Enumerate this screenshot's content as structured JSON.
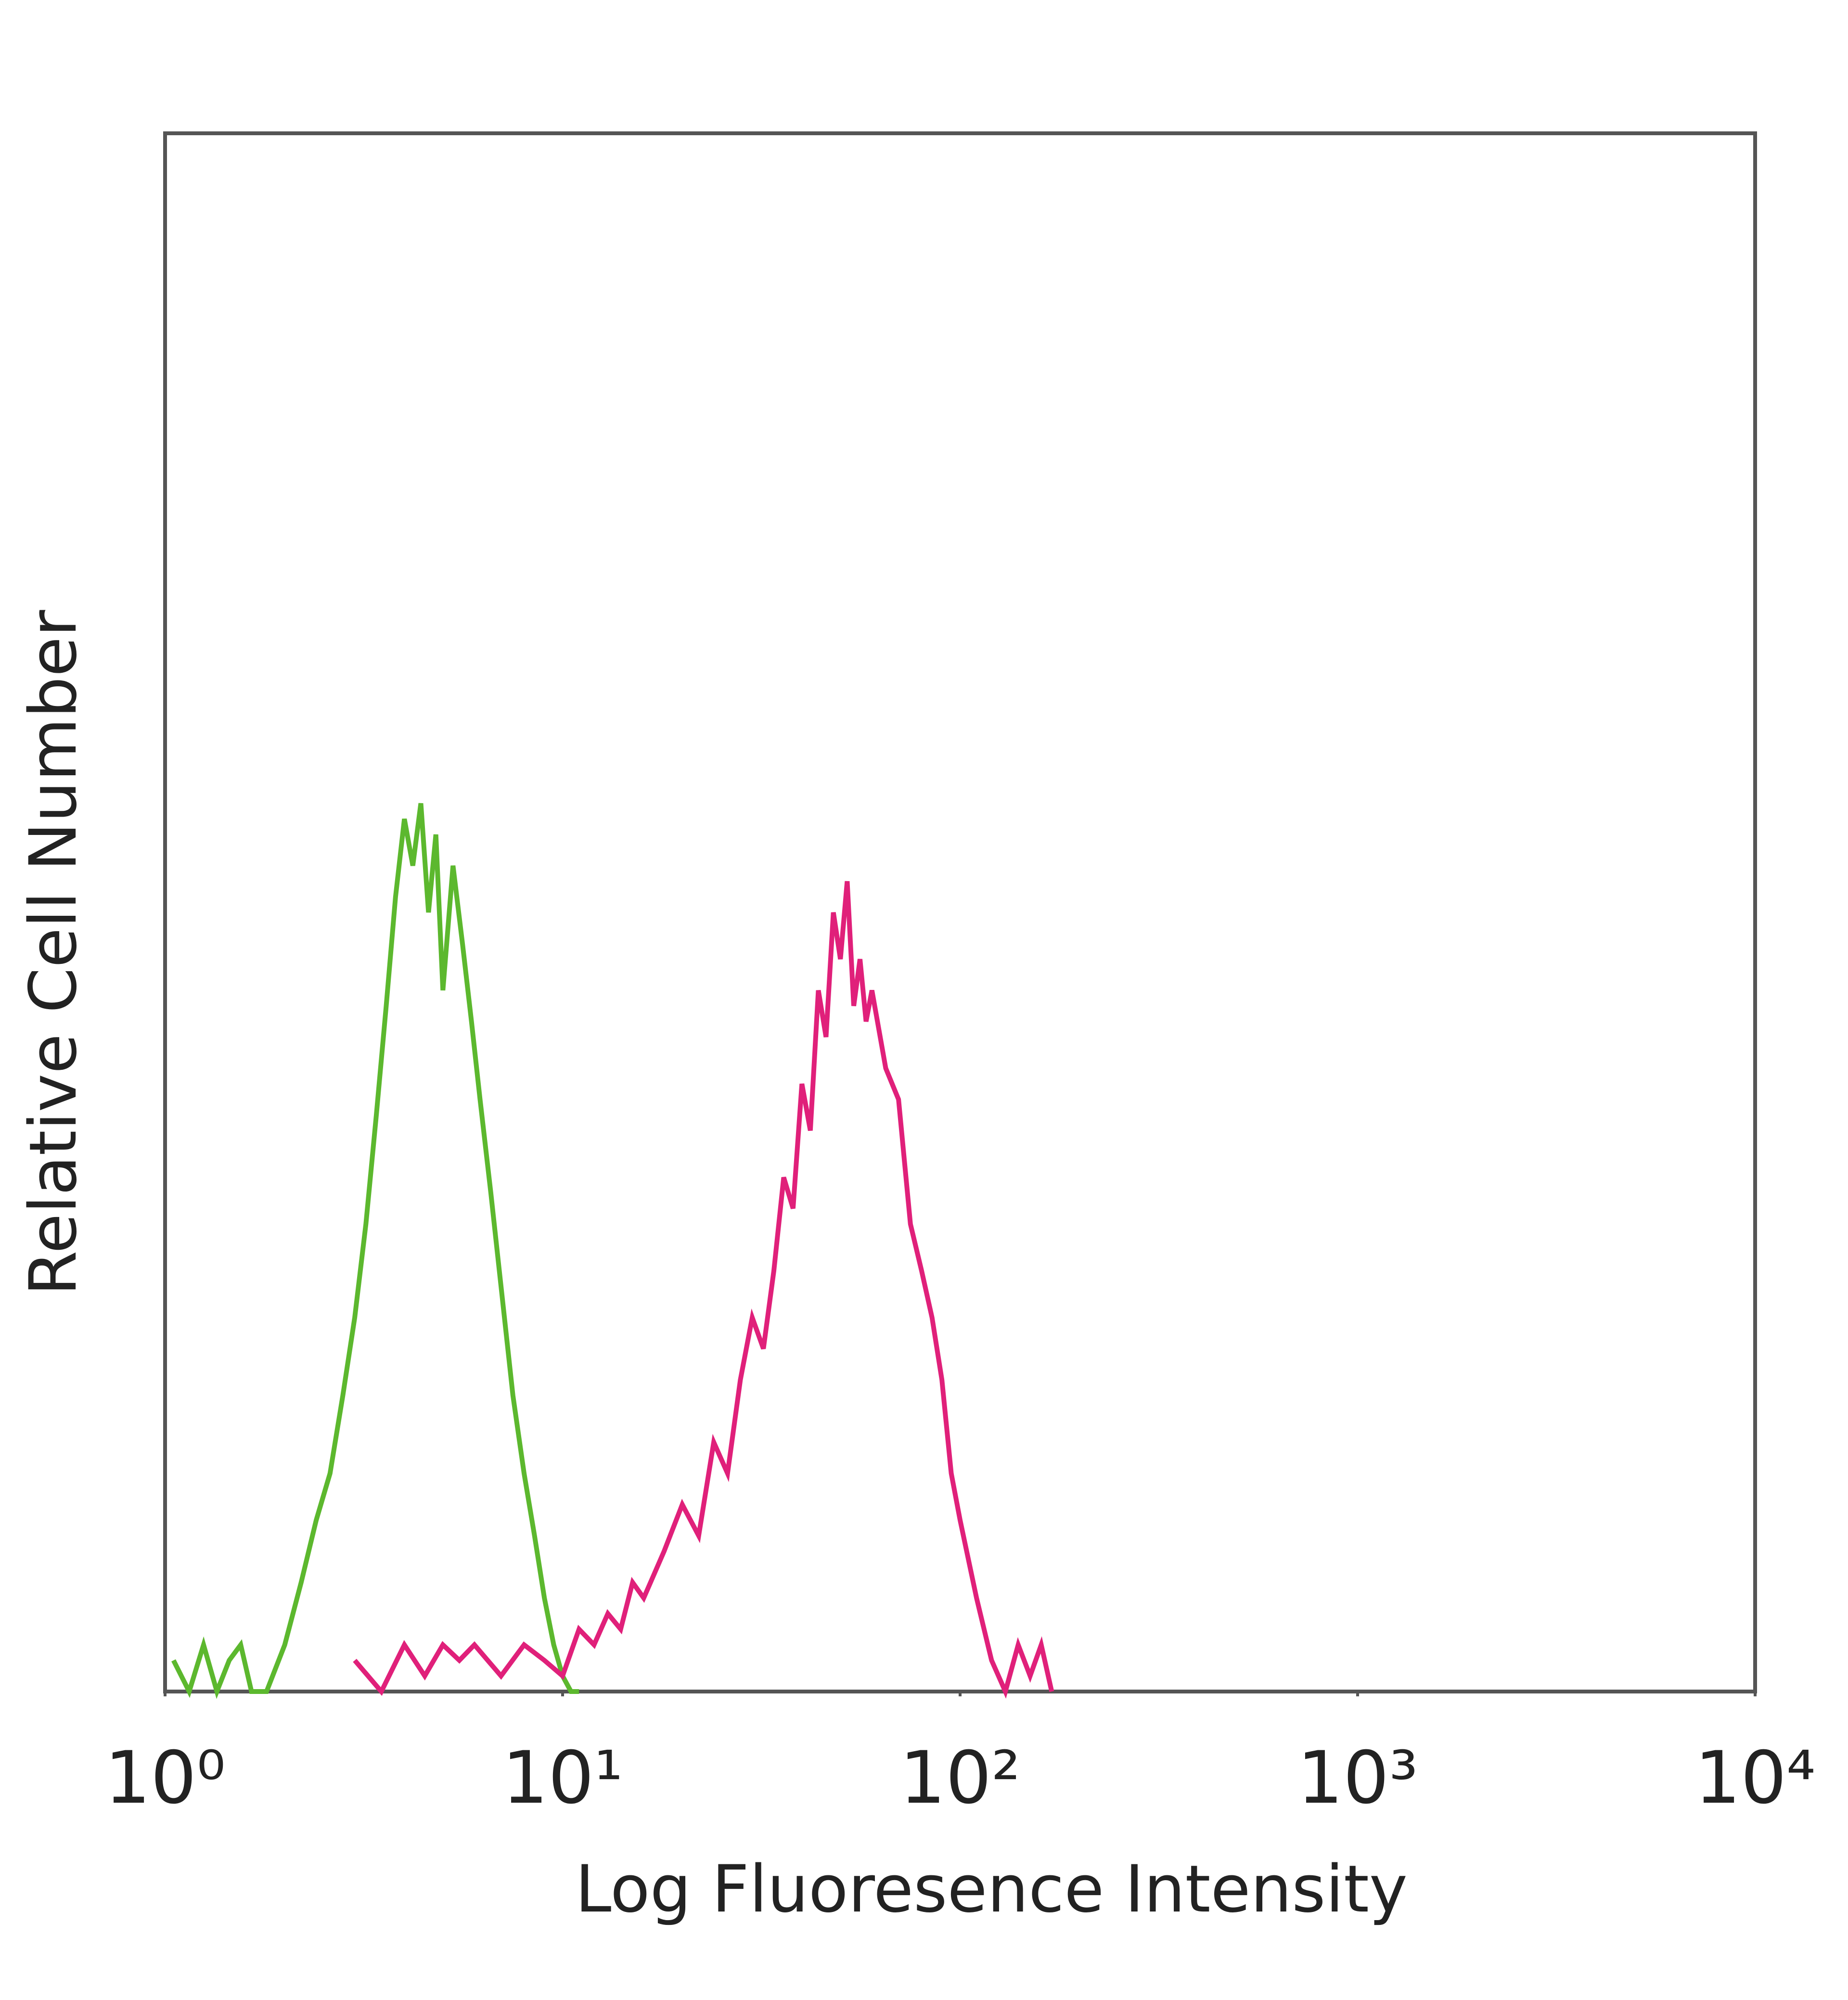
{
  "chart_data": {
    "type": "line",
    "xlabel": "Log Fluoresence Intensity",
    "ylabel": "Relative Cell Number",
    "xscale": "log",
    "xlim": [
      1,
      10000
    ],
    "xticks": [
      {
        "value": 1,
        "label": "10⁰"
      },
      {
        "value": 10,
        "label": "10¹"
      },
      {
        "value": 100,
        "label": "10²"
      },
      {
        "value": 1000,
        "label": "10³"
      },
      {
        "value": 10000,
        "label": "10⁴"
      }
    ],
    "ylim": [
      0,
      100
    ],
    "series": [
      {
        "color": "#5cb82e",
        "x": [
          1.05,
          1.15,
          1.25,
          1.35,
          1.45,
          1.55,
          1.65,
          1.8,
          2.0,
          2.2,
          2.4,
          2.6,
          2.8,
          3.0,
          3.2,
          3.4,
          3.6,
          3.8,
          4.0,
          4.2,
          4.4,
          4.6,
          4.8,
          5.0,
          5.3,
          5.6,
          5.9,
          6.2,
          6.6,
          7.0,
          7.5,
          8.0,
          8.5,
          9.0,
          9.5,
          10,
          10.5,
          11
        ],
        "values": [
          2,
          0,
          3,
          0,
          2,
          3,
          0,
          0,
          3,
          7,
          11,
          14,
          19,
          24,
          30,
          37,
          44,
          51,
          56,
          53,
          57,
          50,
          55,
          45,
          53,
          48,
          43,
          38,
          32,
          26,
          19,
          14,
          10,
          6,
          3,
          1,
          0,
          0
        ]
      },
      {
        "color": "#e0207a",
        "x": [
          3,
          3.5,
          4,
          4.5,
          5,
          5.5,
          6,
          7,
          8,
          9,
          10,
          11,
          12,
          13,
          14,
          15,
          16,
          18,
          20,
          22,
          24,
          26,
          28,
          30,
          32,
          34,
          36,
          38,
          40,
          42,
          44,
          46,
          48,
          50,
          52,
          54,
          56,
          58,
          60,
          65,
          70,
          75,
          80,
          85,
          90,
          95,
          100,
          110,
          120,
          130,
          140,
          150,
          160,
          170
        ],
        "values": [
          2,
          0,
          3,
          1,
          3,
          2,
          3,
          1,
          3,
          2,
          1,
          4,
          3,
          5,
          4,
          7,
          6,
          9,
          12,
          10,
          16,
          14,
          20,
          24,
          22,
          27,
          33,
          31,
          39,
          36,
          45,
          42,
          50,
          47,
          52,
          44,
          47,
          43,
          45,
          40,
          38,
          30,
          27,
          24,
          20,
          14,
          11,
          6,
          2,
          0,
          3,
          1,
          3,
          0
        ]
      }
    ]
  }
}
